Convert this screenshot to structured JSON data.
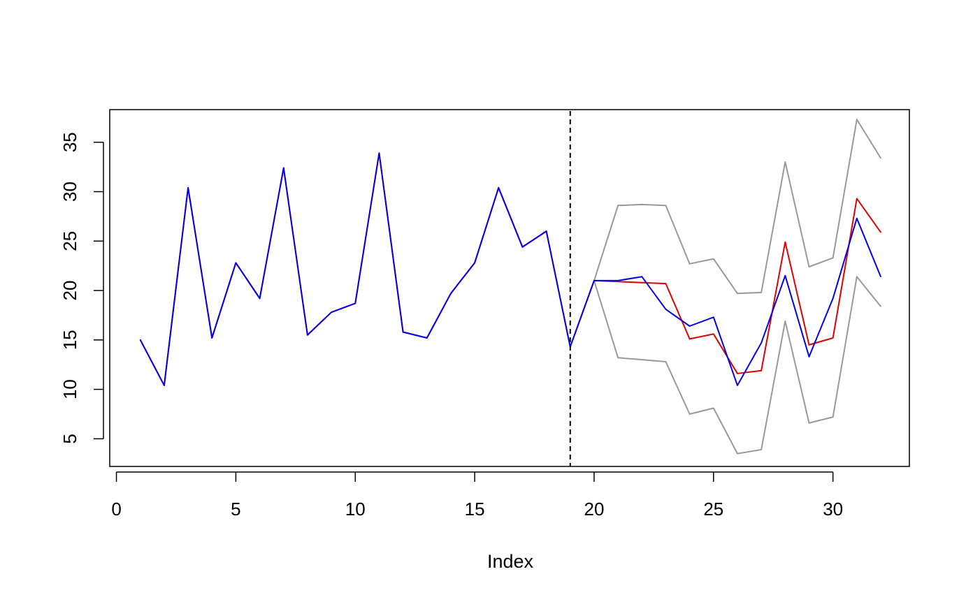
{
  "chart_data": {
    "type": "line",
    "title": "",
    "xlabel": "Index",
    "ylabel": "",
    "xlim": [
      -0.28,
      33.2
    ],
    "ylim": [
      2.2,
      38.3
    ],
    "x_ticks": [
      0,
      5,
      10,
      15,
      20,
      25,
      30
    ],
    "y_ticks": [
      5,
      10,
      15,
      20,
      25,
      30,
      35
    ],
    "grid": false,
    "legend": "none",
    "vline": {
      "x": 19,
      "style": "dashed",
      "color": "#000000"
    },
    "series": [
      {
        "color": "#999999",
        "x": [
          20,
          21,
          22,
          23,
          24,
          25,
          26,
          27,
          28,
          29,
          30,
          31,
          32
        ],
        "values": [
          21.0,
          28.6,
          28.7,
          28.6,
          22.7,
          23.2,
          19.7,
          19.8,
          33.0,
          22.4,
          23.3,
          37.3,
          33.4
        ]
      },
      {
        "color": "#999999",
        "x": [
          20,
          21,
          22,
          23,
          24,
          25,
          26,
          27,
          28,
          29,
          30,
          31,
          32
        ],
        "values": [
          21.0,
          13.2,
          13.0,
          12.8,
          7.5,
          8.1,
          3.5,
          3.9,
          16.9,
          6.6,
          7.2,
          21.4,
          18.4
        ]
      },
      {
        "color": "#dd0000",
        "x": [
          1,
          2,
          3,
          4,
          5,
          6,
          7,
          8,
          9,
          10,
          11,
          12,
          13,
          14,
          15,
          16,
          17,
          18,
          19,
          20,
          21,
          22,
          23,
          24,
          25,
          26,
          27,
          28,
          29,
          30,
          31,
          32
        ],
        "values": [
          15.0,
          10.4,
          30.4,
          15.2,
          22.8,
          19.2,
          32.4,
          15.5,
          17.8,
          18.7,
          33.9,
          15.8,
          15.2,
          19.7,
          22.8,
          30.4,
          24.4,
          26.0,
          14.3,
          21.0,
          20.9,
          20.8,
          20.7,
          15.1,
          15.6,
          11.6,
          11.9,
          24.9,
          14.5,
          15.2,
          29.3,
          25.9
        ]
      },
      {
        "color": "#0000ee",
        "x": [
          1,
          2,
          3,
          4,
          5,
          6,
          7,
          8,
          9,
          10,
          11,
          12,
          13,
          14,
          15,
          16,
          17,
          18,
          19,
          20,
          21,
          22,
          23,
          24,
          25,
          26,
          27,
          28,
          29,
          30,
          31,
          32
        ],
        "values": [
          15.0,
          10.4,
          30.4,
          15.2,
          22.8,
          19.2,
          32.4,
          15.5,
          17.8,
          18.7,
          33.9,
          15.8,
          15.2,
          19.7,
          22.8,
          30.4,
          24.4,
          26.0,
          14.3,
          21.0,
          21.0,
          21.4,
          18.1,
          16.4,
          17.3,
          10.4,
          14.7,
          21.5,
          13.3,
          19.2,
          27.3,
          21.4
        ]
      }
    ]
  }
}
